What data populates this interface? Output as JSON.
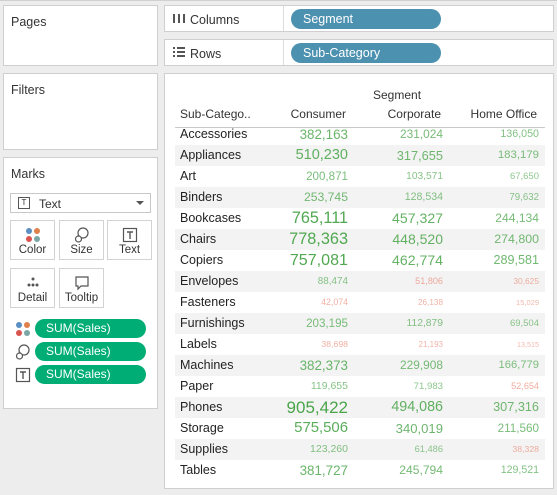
{
  "panels": {
    "pages_title": "Pages",
    "filters_title": "Filters",
    "marks_title": "Marks",
    "mark_type": "Text",
    "mark_buttons": [
      "Color",
      "Size",
      "Text",
      "Detail",
      "Tooltip"
    ],
    "mark_fields": [
      {
        "icon": "color-icon",
        "label": "SUM(Sales)"
      },
      {
        "icon": "size-icon",
        "label": "SUM(Sales)"
      },
      {
        "icon": "text-icon",
        "label": "SUM(Sales)"
      }
    ]
  },
  "shelves": {
    "columns_label": "Columns",
    "columns_pill": "Segment",
    "rows_label": "Rows",
    "rows_pill": "Sub-Category"
  },
  "colors": {
    "pill_blue": "#4d91b0",
    "pill_green": "#00ad75",
    "value_high": "#4aa54a",
    "value_low": "#e8755f"
  },
  "chart_data": {
    "type": "table",
    "title": "Segment",
    "row_header": "Sub-Catego..",
    "columns": [
      "Consumer",
      "Corporate",
      "Home Office"
    ],
    "rows": [
      {
        "label": "Accessories",
        "values": [
          382163,
          231024,
          136050
        ]
      },
      {
        "label": "Appliances",
        "values": [
          510230,
          317655,
          183179
        ]
      },
      {
        "label": "Art",
        "values": [
          200871,
          103571,
          67650
        ]
      },
      {
        "label": "Binders",
        "values": [
          253745,
          128534,
          79632
        ]
      },
      {
        "label": "Bookcases",
        "values": [
          765111,
          457327,
          244134
        ]
      },
      {
        "label": "Chairs",
        "values": [
          778363,
          448520,
          274800
        ]
      },
      {
        "label": "Copiers",
        "values": [
          757081,
          462774,
          289581
        ]
      },
      {
        "label": "Envelopes",
        "values": [
          88474,
          51806,
          30625
        ]
      },
      {
        "label": "Fasteners",
        "values": [
          42074,
          26138,
          15029
        ]
      },
      {
        "label": "Furnishings",
        "values": [
          203195,
          112879,
          69504
        ]
      },
      {
        "label": "Labels",
        "values": [
          38698,
          21193,
          13515
        ]
      },
      {
        "label": "Machines",
        "values": [
          382373,
          229908,
          166779
        ]
      },
      {
        "label": "Paper",
        "values": [
          119655,
          71983,
          52654
        ]
      },
      {
        "label": "Phones",
        "values": [
          905422,
          494086,
          307316
        ]
      },
      {
        "label": "Storage",
        "values": [
          575506,
          340019,
          211560
        ]
      },
      {
        "label": "Supplies",
        "values": [
          123260,
          61486,
          38328
        ]
      },
      {
        "label": "Tables",
        "values": [
          381727,
          245794,
          129521
        ]
      }
    ]
  }
}
